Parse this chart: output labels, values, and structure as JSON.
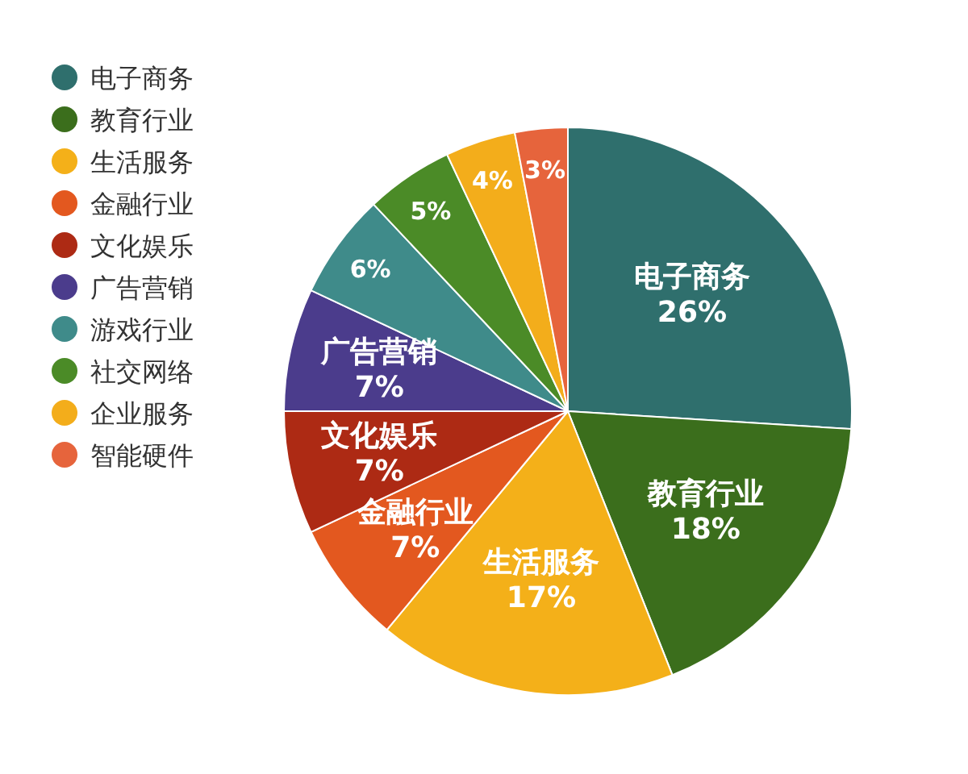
{
  "chart_data": {
    "type": "pie",
    "categories": [
      "电子商务",
      "教育行业",
      "生活服务",
      "金融行业",
      "文化娱乐",
      "广告营销",
      "游戏行业",
      "社交网络",
      "企业服务",
      "智能硬件"
    ],
    "values": [
      26,
      18,
      17,
      7,
      7,
      7,
      6,
      5,
      4,
      3
    ],
    "colors": [
      "#2f6f6d",
      "#3b6e1c",
      "#f4b019",
      "#e3581f",
      "#ad2a14",
      "#4b3c8c",
      "#3f8b8a",
      "#4b8b27",
      "#f3ad1b",
      "#e6643c"
    ],
    "value_labels": [
      "电子商务\n26%",
      "教育行业\n18%",
      "生活服务\n17%",
      "金融行业\n7%",
      "文化娱乐\n7%",
      "广告营销\n7%",
      "6%",
      "5%",
      "4%",
      "3%"
    ],
    "legend": "top left"
  }
}
